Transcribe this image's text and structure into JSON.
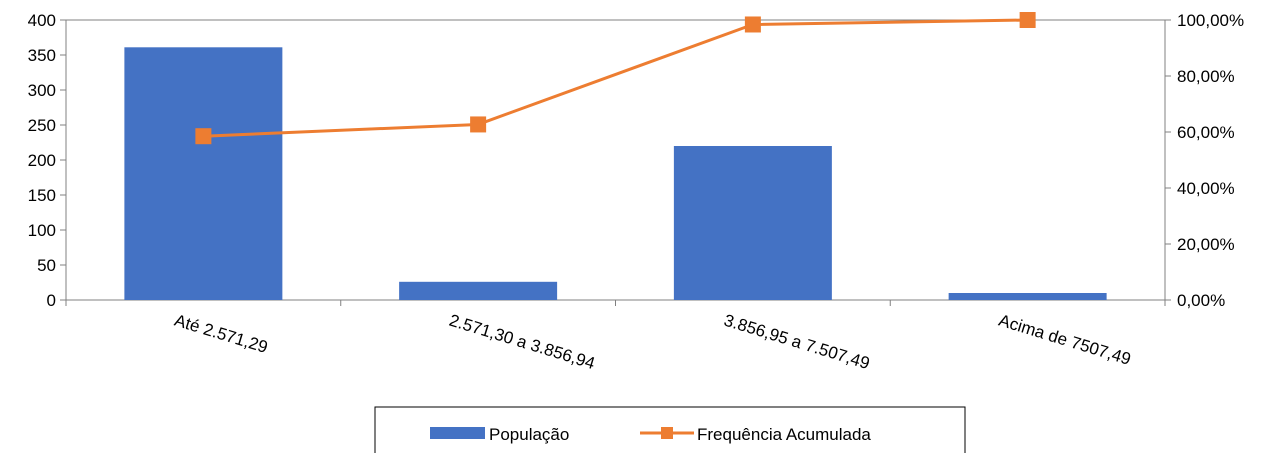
{
  "chart_data": {
    "type": "bar",
    "categories": [
      "Até 2.571,29",
      "2.571,30 a 3.856,94",
      "3.856,95 a 7.507,49",
      "Acima de 7507,49"
    ],
    "series": [
      {
        "name": "População",
        "type": "bar",
        "axis": "left",
        "values": [
          361,
          26,
          220,
          10
        ],
        "color": "#4472C4"
      },
      {
        "name": "Frequência Acumulada",
        "type": "line",
        "axis": "right",
        "values": [
          58.5,
          62.7,
          98.4,
          100
        ],
        "color": "#ED7D31"
      }
    ],
    "y_left": {
      "ylim": [
        0,
        400
      ],
      "ticks": [
        "0",
        "50",
        "100",
        "150",
        "200",
        "250",
        "300",
        "350",
        "400"
      ]
    },
    "y_right": {
      "ylim": [
        0,
        100
      ],
      "ticks": [
        "0,00%",
        "20,00%",
        "40,00%",
        "60,00%",
        "80,00%",
        "100,00%"
      ]
    },
    "grid": false,
    "legend_position": "bottom"
  }
}
